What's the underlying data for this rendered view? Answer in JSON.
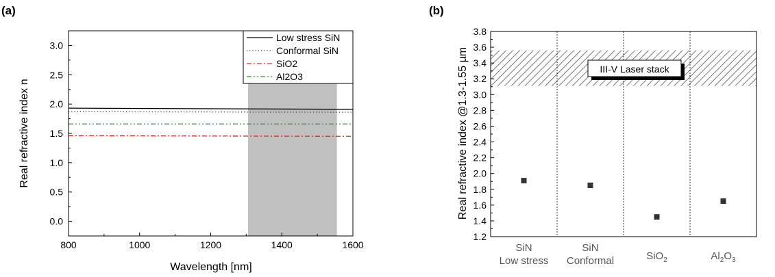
{
  "chart_data": [
    {
      "type": "line",
      "panel_label": "(a)",
      "xlabel": "Wavelength [nm]",
      "ylabel": "Real refractive index n",
      "xlim": [
        800,
        1600
      ],
      "ylim": [
        -0.25,
        3.25
      ],
      "xticks": [
        "800",
        "1000",
        "1200",
        "1400",
        "1600"
      ],
      "yticks": [
        "0.0",
        "0.5",
        "1.0",
        "1.5",
        "2.0",
        "2.5",
        "3.0"
      ],
      "shaded_region": {
        "x": [
          1305,
          1555
        ],
        "color": "#c0c0c0"
      },
      "legend_position": "top-right",
      "grid": false,
      "series": [
        {
          "name": "Low stress SiN",
          "color": "#000000",
          "style": "solid",
          "x": [
            800,
            1600
          ],
          "values": [
            1.93,
            1.91
          ]
        },
        {
          "name": "Conformal SiN",
          "color": "#333333",
          "style": "dotted",
          "x": [
            800,
            1600
          ],
          "values": [
            1.87,
            1.86
          ]
        },
        {
          "name": "SiO2",
          "color": "#e0281e",
          "style": "dashdot",
          "x": [
            800,
            1600
          ],
          "values": [
            1.46,
            1.45
          ]
        },
        {
          "name": "Al2O3",
          "color": "#2f8f2f",
          "style": "dashdotdot",
          "x": [
            800,
            1600
          ],
          "values": [
            1.66,
            1.66
          ]
        }
      ]
    },
    {
      "type": "scatter",
      "panel_label": "(b)",
      "ylabel": "Real refractive index @1.3-1.55 µm",
      "ylim": [
        1.2,
        3.8
      ],
      "yticks": [
        "1.2",
        "1.4",
        "1.6",
        "1.8",
        "2.0",
        "2.2",
        "2.4",
        "2.6",
        "2.8",
        "3.0",
        "3.2",
        "3.4",
        "3.6",
        "3.8"
      ],
      "categories": [
        {
          "line1": "SiN",
          "line2": "Low stress"
        },
        {
          "line1": "SiN",
          "line2": "Conformal"
        },
        {
          "base": "SiO",
          "sub": "2"
        },
        {
          "base": "Al",
          "sub1": "2",
          "mid": "O",
          "sub2": "3"
        }
      ],
      "values": [
        1.91,
        1.85,
        1.45,
        1.65
      ],
      "marker_color": "#333333",
      "band": {
        "y": [
          3.11,
          3.56
        ],
        "label": "III-V Laser stack"
      },
      "grid": false
    }
  ]
}
